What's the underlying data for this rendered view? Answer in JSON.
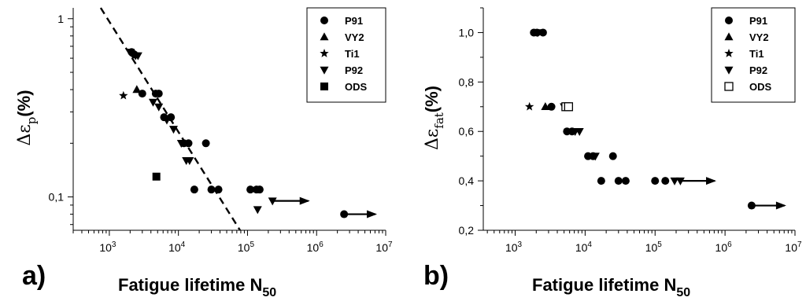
{
  "chart_data": [
    {
      "type": "scatter",
      "panel_label": "a)",
      "xlabel_main": "Fatigue lifetime N",
      "xlabel_sub": "50",
      "ylabel_symbol": "Δε",
      "ylabel_sub": "p",
      "ylabel_unit": "(%)",
      "xscale": "log",
      "yscale": "log",
      "xlim": [
        300,
        10000000
      ],
      "ylim": [
        0.065,
        1.15
      ],
      "xticks": [
        1000,
        10000,
        100000,
        1000000,
        10000000
      ],
      "xtick_labels": [
        [
          "10",
          "3"
        ],
        [
          "10",
          "4"
        ],
        [
          "10",
          "5"
        ],
        [
          "10",
          "6"
        ],
        [
          "10",
          "7"
        ]
      ],
      "yticks": [
        0.1,
        1
      ],
      "ytick_labels": [
        "0,1",
        "1"
      ],
      "grid": false,
      "legend_position": "top-right",
      "legend": [
        {
          "name": "P91",
          "marker": "circle"
        },
        {
          "name": "VY2",
          "marker": "triangle-up"
        },
        {
          "name": "Ti1",
          "marker": "star"
        },
        {
          "name": "P92",
          "marker": "triangle-down"
        },
        {
          "name": "ODS",
          "marker": "square"
        }
      ],
      "series": [
        {
          "name": "P91",
          "marker": "circle",
          "points": [
            [
              2100,
              0.65
            ],
            [
              2300,
              0.63
            ],
            [
              3000,
              0.38
            ],
            [
              4700,
              0.38
            ],
            [
              5200,
              0.38
            ],
            [
              6200,
              0.28
            ],
            [
              7800,
              0.28
            ],
            [
              12000,
              0.2
            ],
            [
              14000,
              0.2
            ],
            [
              25000,
              0.2
            ],
            [
              17000,
              0.11
            ],
            [
              30000,
              0.11
            ],
            [
              38000,
              0.11
            ],
            [
              110000,
              0.11
            ],
            [
              135000,
              0.11
            ],
            [
              150000,
              0.11
            ],
            [
              2500000,
              0.08
            ]
          ]
        },
        {
          "name": "VY2",
          "marker": "triangle-up",
          "points": [
            [
              2500,
              0.4
            ]
          ]
        },
        {
          "name": "Ti1",
          "marker": "star",
          "points": [
            [
              1600,
              0.37
            ]
          ]
        },
        {
          "name": "P92",
          "marker": "triangle-down",
          "points": [
            [
              2000,
              0.65
            ],
            [
              2400,
              0.62
            ],
            [
              2600,
              0.62
            ],
            [
              4300,
              0.34
            ],
            [
              5200,
              0.32
            ],
            [
              6800,
              0.27
            ],
            [
              8500,
              0.24
            ],
            [
              11000,
              0.2
            ],
            [
              13000,
              0.16
            ],
            [
              14500,
              0.16
            ],
            [
              140000,
              0.085
            ],
            [
              230000,
              0.095
            ]
          ]
        },
        {
          "name": "ODS",
          "marker": "square",
          "points": [
            [
              4800,
              0.13
            ]
          ]
        }
      ],
      "fit_line": {
        "style": "dashed",
        "from": [
          750,
          1.15
        ],
        "to": [
          78000,
          0.065
        ]
      },
      "runouts": [
        {
          "from": [
            230000,
            0.095
          ],
          "to": [
            800000,
            0.095
          ]
        },
        {
          "from": [
            2500000,
            0.08
          ],
          "to": [
            7500000,
            0.08
          ]
        }
      ]
    },
    {
      "type": "scatter",
      "panel_label": "b)",
      "xlabel_main": "Fatigue lifetime N",
      "xlabel_sub": "50",
      "ylabel_symbol": "Δε",
      "ylabel_sub": "fat",
      "ylabel_unit": "(%)",
      "xscale": "log",
      "yscale": "linear",
      "xlim": [
        350,
        10000000
      ],
      "ylim": [
        0.2,
        1.1
      ],
      "xticks": [
        1000,
        10000,
        100000,
        1000000,
        10000000
      ],
      "xtick_labels": [
        [
          "10",
          "3"
        ],
        [
          "10",
          "4"
        ],
        [
          "10",
          "5"
        ],
        [
          "10",
          "6"
        ],
        [
          "10",
          "7"
        ]
      ],
      "yticks": [
        0.2,
        0.4,
        0.6,
        0.8,
        1.0
      ],
      "ytick_labels": [
        "0,2",
        "0,4",
        "0,6",
        "0,8",
        "1,0"
      ],
      "grid": false,
      "legend_position": "top-right",
      "legend": [
        {
          "name": "P91",
          "marker": "circle"
        },
        {
          "name": "VY2",
          "marker": "triangle-up"
        },
        {
          "name": "Ti1",
          "marker": "star"
        },
        {
          "name": "P92",
          "marker": "triangle-down"
        },
        {
          "name": "ODS",
          "marker": "open-square"
        }
      ],
      "series": [
        {
          "name": "P91",
          "marker": "circle",
          "points": [
            [
              1850,
              1.0
            ],
            [
              2050,
              1.0
            ],
            [
              2500,
              1.0
            ],
            [
              3300,
              0.7
            ],
            [
              5500,
              0.6
            ],
            [
              6500,
              0.6
            ],
            [
              11000,
              0.5
            ],
            [
              13000,
              0.5
            ],
            [
              25000,
              0.5
            ],
            [
              17000,
              0.4
            ],
            [
              30000,
              0.4
            ],
            [
              38000,
              0.4
            ],
            [
              100000,
              0.4
            ],
            [
              140000,
              0.4
            ],
            [
              2400000,
              0.3
            ]
          ]
        },
        {
          "name": "VY2",
          "marker": "triangle-up",
          "points": [
            [
              2700,
              0.7
            ]
          ]
        },
        {
          "name": "Ti1",
          "marker": "star",
          "points": [
            [
              1600,
              0.7
            ]
          ]
        },
        {
          "name": "P92",
          "marker": "triangle-down",
          "points": [
            [
              2100,
              1.0
            ],
            [
              5000,
              0.7
            ],
            [
              7200,
              0.6
            ],
            [
              8300,
              0.6
            ],
            [
              14000,
              0.5
            ],
            [
              190000,
              0.4
            ],
            [
              230000,
              0.4
            ]
          ]
        },
        {
          "name": "ODS",
          "marker": "open-square",
          "points": [
            [
              5300,
              0.7
            ],
            [
              5800,
              0.7
            ]
          ]
        }
      ],
      "runouts": [
        {
          "from": [
            230000,
            0.4
          ],
          "to": [
            750000,
            0.4
          ]
        },
        {
          "from": [
            2400000,
            0.3
          ],
          "to": [
            7500000,
            0.3
          ]
        }
      ]
    }
  ]
}
